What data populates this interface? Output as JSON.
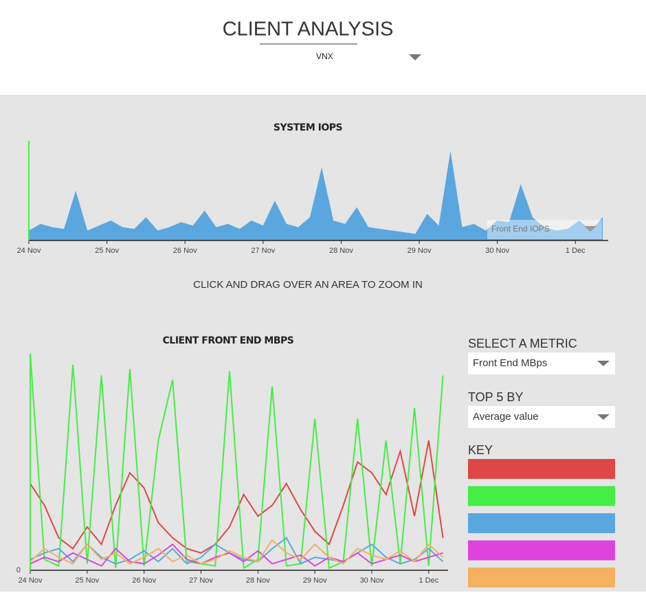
{
  "header": {
    "title": "CLIENT ANALYSIS",
    "system_select": "VNX"
  },
  "chart_data": [
    {
      "type": "area",
      "title": "SYSTEM IOPS",
      "color": "#5aa7e0",
      "metric_select": "Front End IOPS",
      "x": [
        0,
        0.15,
        0.3,
        0.45,
        0.6,
        0.75,
        0.9,
        1.05,
        1.2,
        1.35,
        1.5,
        1.65,
        1.8,
        1.95,
        2.1,
        2.25,
        2.4,
        2.55,
        2.7,
        2.85,
        3,
        3.15,
        3.3,
        3.45,
        3.6,
        3.75,
        3.9,
        4.05,
        4.2,
        4.35,
        4.5,
        4.65,
        4.8,
        4.95,
        5.1,
        5.25,
        5.4,
        5.55,
        5.7,
        5.85,
        6,
        6.15,
        6.3,
        6.45,
        6.6,
        6.75,
        6.9,
        7.05,
        7.2,
        7.35
      ],
      "values": [
        30,
        50,
        40,
        35,
        150,
        30,
        45,
        60,
        40,
        35,
        70,
        30,
        40,
        55,
        45,
        90,
        40,
        50,
        35,
        60,
        45,
        120,
        50,
        40,
        70,
        220,
        60,
        50,
        100,
        40,
        35,
        30,
        25,
        20,
        80,
        45,
        270,
        40,
        50,
        30,
        60,
        55,
        170,
        70,
        40,
        30,
        35,
        60,
        30,
        70
      ],
      "xlim": [
        0,
        7.42
      ],
      "ylim": [
        0,
        300
      ],
      "xticks": [
        {
          "value": 0,
          "label": "24 Nov"
        },
        {
          "value": 1,
          "label": "25 Nov"
        },
        {
          "value": 2,
          "label": "26 Nov"
        },
        {
          "value": 3,
          "label": "27 Nov"
        },
        {
          "value": 4,
          "label": "28 Nov"
        },
        {
          "value": 5,
          "label": "29 Nov"
        },
        {
          "value": 6,
          "label": "30 Nov"
        },
        {
          "value": 7,
          "label": "1 Dec"
        }
      ]
    },
    {
      "type": "line",
      "title": "CLIENT FRONT END MBPS",
      "x": [
        0,
        0.25,
        0.5,
        0.75,
        1,
        1.25,
        1.5,
        1.75,
        2,
        2.25,
        2.5,
        2.75,
        3,
        3.25,
        3.5,
        3.75,
        4,
        4.25,
        4.5,
        4.75,
        5,
        5.25,
        5.5,
        5.75,
        6,
        6.25,
        6.5,
        6.75,
        7,
        7.25
      ],
      "series": [
        {
          "color": "#e04646",
          "values": [
            40,
            30,
            15,
            10,
            20,
            12,
            30,
            45,
            38,
            22,
            15,
            10,
            8,
            12,
            20,
            35,
            25,
            30,
            40,
            28,
            18,
            12,
            30,
            50,
            45,
            35,
            55,
            25,
            60,
            15
          ]
        },
        {
          "color": "#44ee44",
          "values": [
            100,
            5,
            2,
            95,
            3,
            90,
            1,
            93,
            2,
            60,
            88,
            4,
            3,
            2,
            92,
            1,
            5,
            85,
            2,
            3,
            70,
            1,
            4,
            70,
            2,
            60,
            3,
            75,
            2,
            90
          ]
        },
        {
          "color": "#5aa7e0",
          "values": [
            5,
            8,
            10,
            4,
            12,
            6,
            3,
            5,
            9,
            4,
            10,
            3,
            6,
            12,
            8,
            5,
            4,
            10,
            15,
            3,
            6,
            5,
            4,
            8,
            12,
            6,
            3,
            5,
            10,
            4
          ]
        },
        {
          "color": "#dd44dd",
          "values": [
            3,
            6,
            4,
            8,
            5,
            2,
            10,
            4,
            3,
            7,
            12,
            5,
            3,
            6,
            8,
            4,
            9,
            3,
            5,
            7,
            2,
            6,
            4,
            8,
            3,
            5,
            7,
            4,
            6,
            8
          ]
        },
        {
          "color": "#f5b060",
          "values": [
            4,
            10,
            6,
            3,
            12,
            5,
            8,
            3,
            6,
            10,
            4,
            7,
            3,
            5,
            9,
            6,
            4,
            14,
            8,
            5,
            12,
            6,
            3,
            10,
            7,
            5,
            9,
            4,
            12,
            6
          ]
        }
      ],
      "xlim": [
        0,
        7.34
      ],
      "ylim": [
        0,
        100
      ],
      "yticks": [
        0
      ],
      "xticks": [
        {
          "value": 0,
          "label": "24 Nov"
        },
        {
          "value": 1,
          "label": "25 Nov"
        },
        {
          "value": 2,
          "label": "26 Nov"
        },
        {
          "value": 3,
          "label": "27 Nov"
        },
        {
          "value": 4,
          "label": "28 Nov"
        },
        {
          "value": 5,
          "label": "29 Nov"
        },
        {
          "value": 6,
          "label": "30 Nov"
        },
        {
          "value": 7,
          "label": "1 Dec"
        }
      ]
    }
  ],
  "instruction": "CLICK AND DRAG OVER AN AREA TO ZOOM IN",
  "controls": {
    "metric_label": "SELECT A METRIC",
    "metric_value": "Front End MBps",
    "top_label": "TOP 5 BY",
    "top_value": "Average value",
    "key_label": "KEY"
  }
}
